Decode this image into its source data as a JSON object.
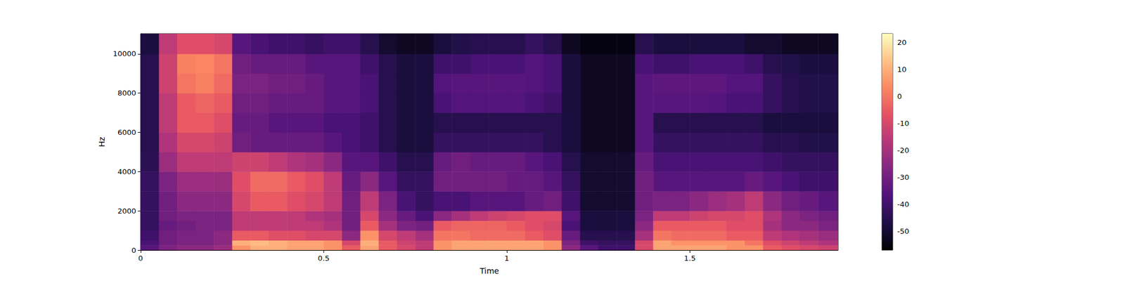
{
  "chart_data": {
    "type": "heatmap",
    "x_label": "Time",
    "y_label": "Hz",
    "xlim": [
      0,
      1.905
    ],
    "xticks": [
      0,
      0.5,
      1,
      1.5
    ],
    "ylim": [
      0,
      11025
    ],
    "yticks": [
      0,
      2000,
      4000,
      6000,
      8000,
      10000
    ],
    "time_bins": [
      0,
      0.05,
      0.1,
      0.15,
      0.2,
      0.25,
      0.3,
      0.35,
      0.4,
      0.45,
      0.5,
      0.55,
      0.6,
      0.65,
      0.7,
      0.75,
      0.8,
      0.85,
      0.9,
      0.95,
      1,
      1.05,
      1.1,
      1.15,
      1.2,
      1.25,
      1.3,
      1.35,
      1.4,
      1.45,
      1.5,
      1.55,
      1.6,
      1.65,
      1.7,
      1.75,
      1.8,
      1.85,
      1.905
    ],
    "freq_bins": [
      0,
      250,
      500,
      1000,
      1500,
      2000,
      3000,
      4000,
      5000,
      6000,
      7000,
      8000,
      9000,
      10000,
      11025
    ],
    "cells": [
      [
        -35,
        -28,
        -25,
        -25,
        -22,
        5,
        10,
        10,
        8,
        8,
        5,
        -5,
        8,
        -5,
        -10,
        -15,
        5,
        8,
        8,
        8,
        8,
        8,
        5,
        -25,
        -35,
        -40,
        -40,
        -10,
        8,
        8,
        8,
        8,
        5,
        5,
        -5,
        -8,
        -10,
        -12
      ],
      [
        -38,
        -30,
        -28,
        -28,
        -25,
        10,
        12,
        10,
        8,
        8,
        5,
        -10,
        10,
        -5,
        -12,
        -15,
        5,
        8,
        8,
        8,
        8,
        8,
        5,
        -28,
        -40,
        -42,
        -42,
        -10,
        8,
        5,
        5,
        5,
        5,
        0,
        -8,
        -12,
        -15,
        -18
      ],
      [
        -40,
        -30,
        -28,
        -28,
        -25,
        -5,
        -5,
        -8,
        -8,
        -10,
        -10,
        -25,
        5,
        -10,
        -15,
        -20,
        0,
        0,
        -2,
        -2,
        -2,
        -5,
        -8,
        -32,
        -45,
        -45,
        -45,
        -20,
        0,
        -2,
        -2,
        -2,
        -5,
        -5,
        -15,
        -18,
        -20,
        -22
      ],
      [
        -42,
        -32,
        -30,
        -28,
        -28,
        -15,
        -15,
        -15,
        -15,
        -15,
        -18,
        -30,
        -5,
        -20,
        -28,
        -30,
        -5,
        -3,
        -3,
        -3,
        -5,
        -8,
        -10,
        -38,
        -48,
        -48,
        -48,
        -25,
        -5,
        -5,
        -5,
        -5,
        -8,
        -8,
        -20,
        -25,
        -25,
        -28
      ],
      [
        -42,
        -30,
        -28,
        -28,
        -28,
        -15,
        -15,
        -15,
        -15,
        -18,
        -20,
        -30,
        -10,
        -25,
        -32,
        -38,
        -25,
        -20,
        -15,
        -12,
        -10,
        -8,
        -8,
        -35,
        -48,
        -48,
        -48,
        -28,
        -15,
        -15,
        -12,
        -10,
        -10,
        -8,
        -18,
        -25,
        -28,
        -30
      ],
      [
        -42,
        -30,
        -25,
        -25,
        -25,
        -10,
        -5,
        -5,
        -8,
        -10,
        -15,
        -30,
        -15,
        -28,
        -38,
        -42,
        -38,
        -38,
        -35,
        -35,
        -35,
        -32,
        -30,
        -40,
        -50,
        -50,
        -50,
        -30,
        -28,
        -28,
        -25,
        -22,
        -20,
        -15,
        -25,
        -30,
        -32,
        -35
      ],
      [
        -42,
        -28,
        -22,
        -22,
        -22,
        -8,
        -2,
        -2,
        -5,
        -8,
        -15,
        -32,
        -25,
        -35,
        -42,
        -42,
        -30,
        -30,
        -30,
        -30,
        -32,
        -32,
        -35,
        -42,
        -50,
        -50,
        -50,
        -30,
        -35,
        -35,
        -35,
        -35,
        -35,
        -32,
        -35,
        -38,
        -40,
        -40
      ],
      [
        -44,
        -22,
        -15,
        -15,
        -15,
        -12,
        -12,
        -15,
        -18,
        -20,
        -25,
        -35,
        -35,
        -40,
        -45,
        -45,
        -32,
        -30,
        -32,
        -32,
        -32,
        -35,
        -38,
        -45,
        -50,
        -50,
        -50,
        -32,
        -38,
        -38,
        -38,
        -38,
        -38,
        -38,
        -40,
        -42,
        -42,
        -42
      ],
      [
        -45,
        -18,
        -10,
        -10,
        -12,
        -30,
        -32,
        -32,
        -32,
        -32,
        -35,
        -38,
        -40,
        -45,
        -48,
        -48,
        -42,
        -42,
        -42,
        -42,
        -42,
        -42,
        -45,
        -48,
        -52,
        -52,
        -52,
        -35,
        -42,
        -42,
        -42,
        -42,
        -42,
        -42,
        -45,
        -45,
        -46,
        -46
      ],
      [
        -45,
        -15,
        -5,
        -5,
        -8,
        -32,
        -32,
        -35,
        -35,
        -35,
        -38,
        -38,
        -40,
        -45,
        -48,
        -48,
        -45,
        -45,
        -45,
        -45,
        -45,
        -45,
        -45,
        -48,
        -52,
        -52,
        -52,
        -35,
        -45,
        -45,
        -45,
        -45,
        -45,
        -45,
        -48,
        -48,
        -48,
        -48
      ],
      [
        -45,
        -15,
        -5,
        -3,
        -5,
        -30,
        -30,
        -32,
        -32,
        -32,
        -35,
        -35,
        -38,
        -45,
        -48,
        -48,
        -38,
        -36,
        -36,
        -36,
        -36,
        -38,
        -40,
        -48,
        -52,
        -52,
        -52,
        -35,
        -35,
        -35,
        -35,
        -36,
        -38,
        -38,
        -42,
        -45,
        -46,
        -46
      ],
      [
        -45,
        -12,
        0,
        2,
        -2,
        -28,
        -28,
        -30,
        -30,
        -32,
        -35,
        -35,
        -38,
        -45,
        -48,
        -48,
        -36,
        -35,
        -35,
        -35,
        -35,
        -36,
        -38,
        -48,
        -52,
        -52,
        -52,
        -35,
        -34,
        -34,
        -34,
        -34,
        -36,
        -36,
        -42,
        -45,
        -46,
        -46
      ],
      [
        -45,
        -12,
        2,
        3,
        0,
        -30,
        -32,
        -32,
        -32,
        -35,
        -35,
        -35,
        -40,
        -45,
        -48,
        -48,
        -40,
        -40,
        -38,
        -38,
        -38,
        -36,
        -38,
        -48,
        -52,
        -52,
        -52,
        -38,
        -40,
        -40,
        -38,
        -38,
        -38,
        -40,
        -45,
        -46,
        -48,
        -48
      ],
      [
        -48,
        -15,
        -8,
        -8,
        -10,
        -35,
        -38,
        -40,
        -40,
        -42,
        -40,
        -40,
        -45,
        -50,
        -52,
        -52,
        -48,
        -46,
        -45,
        -45,
        -45,
        -42,
        -45,
        -52,
        -55,
        -55,
        -55,
        -45,
        -48,
        -48,
        -48,
        -48,
        -48,
        -50,
        -50,
        -52,
        -52,
        -52
      ]
    ],
    "colorbar_range": [
      -56.9,
      23.2
    ],
    "colorbar_ticks": [
      -50,
      -40,
      -30,
      -20,
      -10,
      0,
      10,
      20
    ]
  }
}
